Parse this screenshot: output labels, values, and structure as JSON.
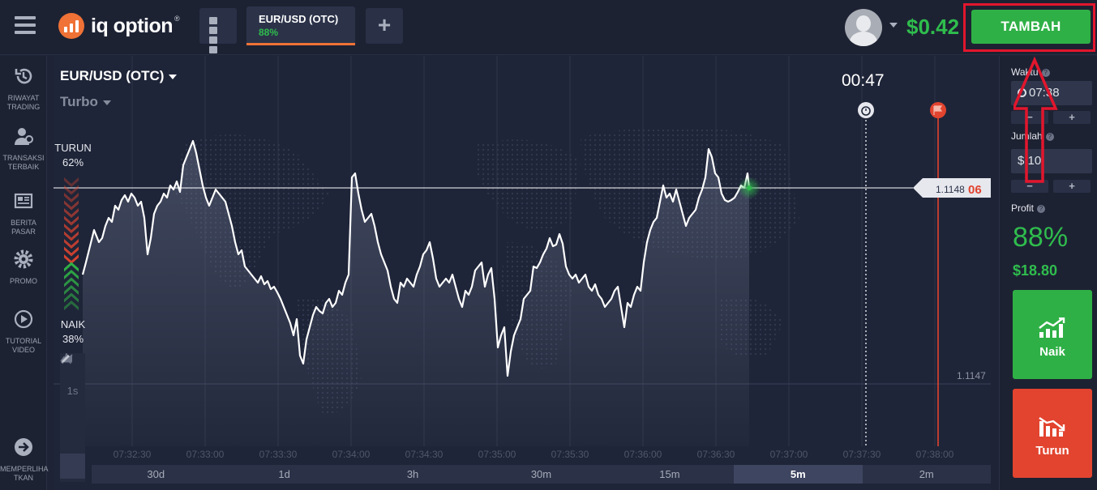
{
  "app": {
    "logo_text": "iq option",
    "logo_reg": "®",
    "balance": "$0.42",
    "deposit_button": "TAMBAH",
    "asset_tab": {
      "name": "EUR/USD (OTC)",
      "payout": "88%"
    },
    "add_tab_glyph": "+"
  },
  "sidebar": {
    "items": [
      {
        "label": "RIWAYAT\nTRADING",
        "icon": "history-icon"
      },
      {
        "label": "TRANSAKSI\nTERBAIK",
        "icon": "users-icon"
      },
      {
        "label": "BERITA PASAR",
        "icon": "news-icon"
      },
      {
        "label": "PROMO",
        "icon": "gear-icon"
      },
      {
        "label": "TUTORIAL\nVIDEO",
        "icon": "play-icon"
      },
      {
        "label": "MEMPERLIHA\nTKAN",
        "icon": "arrow-right-icon"
      }
    ]
  },
  "chart": {
    "pair": "EUR/USD (OTC)",
    "mode": "Turbo",
    "timer": "00:47",
    "sentiment": {
      "down_label": "TURUN",
      "down_pct": "62%",
      "up_label": "NAIK",
      "up_pct": "38%"
    },
    "price_tag_main": "1.1148",
    "price_tag_pips": "06",
    "low_price_label": "1.1147",
    "time_labels": [
      "07:32:30",
      "07:33:00",
      "07:33:30",
      "07:34:00",
      "07:34:30",
      "07:35:00",
      "07:35:30",
      "07:36:00",
      "07:36:30",
      "07:37:00",
      "07:37:30",
      "07:38:00"
    ],
    "timeframes": [
      "30d",
      "1d",
      "3h",
      "30m",
      "15m",
      "5m",
      "2m"
    ],
    "active_timeframe": "5m",
    "tools": [
      {
        "label": "",
        "icon": "area-chart-icon"
      },
      {
        "label": "1s",
        "icon": ""
      },
      {
        "label": "",
        "icon": "indicator-icon"
      },
      {
        "label": "",
        "icon": "line-tool-icon"
      },
      {
        "label": "",
        "icon": "pencil-icon"
      }
    ],
    "colors": {
      "line": "#ffffff",
      "expiry": "#e2442f",
      "up": "#2fb046",
      "down": "#e2442f"
    }
  },
  "panel": {
    "time_label": "Waktu",
    "time_value": "07:38",
    "amount_label": "Jumlah",
    "amount_value": "$ 10",
    "minus": "−",
    "plus": "+",
    "profit_label": "Profit",
    "profit_pct": "88%",
    "profit_amount": "$18.80",
    "up_button": "Naik",
    "down_button": "Turun"
  }
}
